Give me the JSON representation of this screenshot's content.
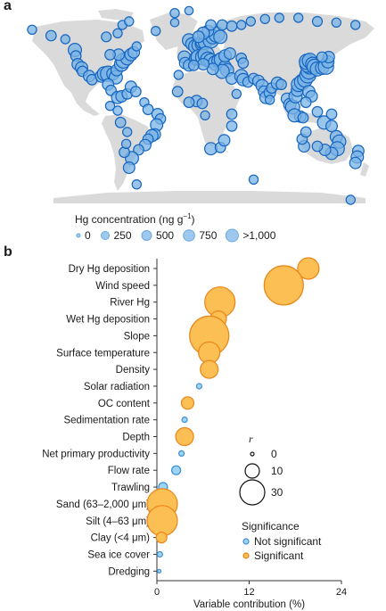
{
  "panel_a": {
    "label": "a"
  },
  "panel_b": {
    "label": "b"
  },
  "map_legend": {
    "title": "Hg concentration (ng g",
    "title_sup": "−1",
    "title_close": ")",
    "items": [
      {
        "label": "0",
        "value": 0
      },
      {
        "label": "250",
        "value": 250
      },
      {
        "label": "500",
        "value": 500
      },
      {
        "label": "750",
        "value": 750
      },
      {
        "label": ">1,000",
        "value": 1000
      }
    ]
  },
  "colors": {
    "not_significant_fill": "#9fd3f2",
    "not_significant_stroke": "#3b8fd4",
    "significant_fill": "#fbbf53",
    "significant_stroke": "#e8861b",
    "map_land": "#dadada",
    "map_point_fill": "#79b3e6",
    "map_point_stroke": "#1565c0"
  },
  "chart_data": {
    "type": "scatter",
    "xlabel": "Variable contribution (%)",
    "xlim": [
      0,
      24
    ],
    "xticks": [
      0,
      12,
      24
    ],
    "categories": [
      "Dry Hg deposition",
      "Wind speed",
      "River Hg",
      "Wet Hg deposition",
      "Slope",
      "Surface temperature",
      "Density",
      "Solar radiation",
      "OC content",
      "Sedimentation rate",
      "Depth",
      "Net primary productivity",
      "Flow rate",
      "Trawling",
      "Sand (63–2,000 μm)",
      "Silt (4–63 μm)",
      "Clay (<4 μm)",
      "Sea ice cover",
      "Dredging"
    ],
    "points": [
      {
        "x": 19.7,
        "r": 12,
        "significant": true
      },
      {
        "x": 16.5,
        "r": 22,
        "significant": true
      },
      {
        "x": 8.2,
        "r": 17,
        "significant": true
      },
      {
        "x": 8.0,
        "r": 9,
        "significant": true
      },
      {
        "x": 6.8,
        "r": 22,
        "significant": true
      },
      {
        "x": 6.8,
        "r": 12,
        "significant": true
      },
      {
        "x": 6.8,
        "r": 10,
        "significant": true
      },
      {
        "x": 5.5,
        "r": 3,
        "significant": false
      },
      {
        "x": 4.0,
        "r": 7,
        "significant": true
      },
      {
        "x": 3.6,
        "r": 3,
        "significant": false
      },
      {
        "x": 3.6,
        "r": 10,
        "significant": true
      },
      {
        "x": 3.2,
        "r": 3,
        "significant": false
      },
      {
        "x": 2.5,
        "r": 5,
        "significant": false
      },
      {
        "x": 0.8,
        "r": 5,
        "significant": false
      },
      {
        "x": 0.7,
        "r": 17,
        "significant": true
      },
      {
        "x": 0.7,
        "r": 17,
        "significant": true
      },
      {
        "x": 0.6,
        "r": 6,
        "significant": true
      },
      {
        "x": 0.4,
        "r": 3,
        "significant": false
      },
      {
        "x": 0.3,
        "r": 2,
        "significant": false
      }
    ],
    "size_legend": {
      "title": "r",
      "items": [
        {
          "label": "0",
          "r": 0
        },
        {
          "label": "10",
          "r": 10
        },
        {
          "label": "30",
          "r": 30
        }
      ]
    },
    "color_legend": {
      "title": "Significance",
      "items": [
        {
          "label": "Not significant",
          "significant": false
        },
        {
          "label": "Significant",
          "significant": true
        }
      ]
    }
  },
  "map_points": [
    {
      "lon": -150,
      "lat": 61,
      "v": 300
    },
    {
      "lon": -135,
      "lat": 58,
      "v": 200
    },
    {
      "lon": -125,
      "lat": 49,
      "v": 600
    },
    {
      "lon": -124,
      "lat": 44,
      "v": 300
    },
    {
      "lon": -122,
      "lat": 37,
      "v": 400
    },
    {
      "lon": -118,
      "lat": 34,
      "v": 500
    },
    {
      "lon": -117,
      "lat": 31,
      "v": 300
    },
    {
      "lon": -110,
      "lat": 27,
      "v": 400
    },
    {
      "lon": -107,
      "lat": 24,
      "v": 300
    },
    {
      "lon": -97,
      "lat": 27,
      "v": 500
    },
    {
      "lon": -94,
      "lat": 29,
      "v": 700
    },
    {
      "lon": -90,
      "lat": 29,
      "v": 900
    },
    {
      "lon": -85,
      "lat": 29,
      "v": 500
    },
    {
      "lon": -82,
      "lat": 26,
      "v": 600
    },
    {
      "lon": -81,
      "lat": 32,
      "v": 400
    },
    {
      "lon": -76,
      "lat": 37,
      "v": 700
    },
    {
      "lon": -74,
      "lat": 40,
      "v": 800
    },
    {
      "lon": -70,
      "lat": 42,
      "v": 600
    },
    {
      "lon": -66,
      "lat": 45,
      "v": 500
    },
    {
      "lon": -63,
      "lat": 47,
      "v": 400
    },
    {
      "lon": -60,
      "lat": 52,
      "v": 200
    },
    {
      "lon": -79,
      "lat": 45,
      "v": 400
    },
    {
      "lon": -88,
      "lat": 45,
      "v": 300
    },
    {
      "lon": -92,
      "lat": 60,
      "v": 250
    },
    {
      "lon": -80,
      "lat": 63,
      "v": 200
    },
    {
      "lon": -75,
      "lat": 70,
      "v": 200
    },
    {
      "lon": -68,
      "lat": 73,
      "v": 200
    },
    {
      "lon": -40,
      "lat": 65,
      "v": 200
    },
    {
      "lon": -20,
      "lat": 72,
      "v": 150
    },
    {
      "lon": -20,
      "lat": 80,
      "v": 200
    },
    {
      "lon": -5,
      "lat": 82,
      "v": 150
    },
    {
      "lon": -90,
      "lat": 20,
      "v": 400
    },
    {
      "lon": -87,
      "lat": 15,
      "v": 300
    },
    {
      "lon": -80,
      "lat": 9,
      "v": 500
    },
    {
      "lon": -76,
      "lat": 10,
      "v": 400
    },
    {
      "lon": -70,
      "lat": 12,
      "v": 300
    },
    {
      "lon": -66,
      "lat": 18,
      "v": 400
    },
    {
      "lon": -61,
      "lat": 14,
      "v": 300
    },
    {
      "lon": -52,
      "lat": 5,
      "v": 200
    },
    {
      "lon": -48,
      "lat": -1,
      "v": 300
    },
    {
      "lon": -38,
      "lat": -5,
      "v": 400
    },
    {
      "lon": -35,
      "lat": -9,
      "v": 300
    },
    {
      "lon": -39,
      "lat": -14,
      "v": 500
    },
    {
      "lon": -41,
      "lat": -22,
      "v": 400
    },
    {
      "lon": -44,
      "lat": -23,
      "v": 500
    },
    {
      "lon": -48,
      "lat": -26,
      "v": 300
    },
    {
      "lon": -51,
      "lat": -31,
      "v": 400
    },
    {
      "lon": -58,
      "lat": -35,
      "v": 300
    },
    {
      "lon": -65,
      "lat": -42,
      "v": 600
    },
    {
      "lon": -68,
      "lat": -50,
      "v": 400
    },
    {
      "lon": -73,
      "lat": -37,
      "v": 300
    },
    {
      "lon": -71,
      "lat": -30,
      "v": 200
    },
    {
      "lon": -70,
      "lat": -20,
      "v": 200
    },
    {
      "lon": -77,
      "lat": -12,
      "v": 300
    },
    {
      "lon": -80,
      "lat": -2,
      "v": 200
    },
    {
      "lon": -88,
      "lat": 2,
      "v": 200
    },
    {
      "lon": -5,
      "lat": 57,
      "v": 600
    },
    {
      "lon": -2,
      "lat": 54,
      "v": 500
    },
    {
      "lon": 2,
      "lat": 52,
      "v": 700
    },
    {
      "lon": 5,
      "lat": 53,
      "v": 600
    },
    {
      "lon": 8,
      "lat": 54,
      "v": 500
    },
    {
      "lon": 10,
      "lat": 56,
      "v": 800
    },
    {
      "lon": 12,
      "lat": 55,
      "v": 600
    },
    {
      "lon": 18,
      "lat": 57,
      "v": 900
    },
    {
      "lon": 20,
      "lat": 60,
      "v": 700
    },
    {
      "lon": 24,
      "lat": 62,
      "v": 900
    },
    {
      "lon": 28,
      "lat": 60,
      "v": 600
    },
    {
      "lon": 15,
      "lat": 65,
      "v": 400
    },
    {
      "lon": 10,
      "lat": 63,
      "v": 500
    },
    {
      "lon": 5,
      "lat": 60,
      "v": 400
    },
    {
      "lon": 18,
      "lat": 70,
      "v": 300
    },
    {
      "lon": 30,
      "lat": 70,
      "v": 300
    },
    {
      "lon": 40,
      "lat": 69,
      "v": 300
    },
    {
      "lon": 50,
      "lat": 70,
      "v": 200
    },
    {
      "lon": 60,
      "lat": 73,
      "v": 200
    },
    {
      "lon": 75,
      "lat": 75,
      "v": 200
    },
    {
      "lon": 90,
      "lat": 76,
      "v": 200
    },
    {
      "lon": 110,
      "lat": 76,
      "v": 200
    },
    {
      "lon": 130,
      "lat": 73,
      "v": 250
    },
    {
      "lon": 150,
      "lat": 72,
      "v": 200
    },
    {
      "lon": 170,
      "lat": 70,
      "v": 200
    },
    {
      "lon": -170,
      "lat": 66,
      "v": 200
    },
    {
      "lon": -10,
      "lat": 43,
      "v": 500
    },
    {
      "lon": -9,
      "lat": 38,
      "v": 400
    },
    {
      "lon": -5,
      "lat": 36,
      "v": 400
    },
    {
      "lon": 3,
      "lat": 42,
      "v": 700
    },
    {
      "lon": 5,
      "lat": 43,
      "v": 800
    },
    {
      "lon": 10,
      "lat": 43,
      "v": 900
    },
    {
      "lon": 13,
      "lat": 45,
      "v": 1000
    },
    {
      "lon": 15,
      "lat": 41,
      "v": 800
    },
    {
      "lon": 18,
      "lat": 40,
      "v": 700
    },
    {
      "lon": 23,
      "lat": 38,
      "v": 800
    },
    {
      "lon": 26,
      "lat": 40,
      "v": 600
    },
    {
      "lon": 29,
      "lat": 41,
      "v": 700
    },
    {
      "lon": 33,
      "lat": 35,
      "v": 500
    },
    {
      "lon": 35,
      "lat": 32,
      "v": 600
    },
    {
      "lon": 30,
      "lat": 31,
      "v": 700
    },
    {
      "lon": 20,
      "lat": 33,
      "v": 400
    },
    {
      "lon": 10,
      "lat": 37,
      "v": 400
    },
    {
      "lon": 0,
      "lat": 36,
      "v": 300
    },
    {
      "lon": 33,
      "lat": 44,
      "v": 500
    },
    {
      "lon": 38,
      "lat": 46,
      "v": 400
    },
    {
      "lon": 50,
      "lat": 42,
      "v": 300
    },
    {
      "lon": 52,
      "lat": 38,
      "v": 300
    },
    {
      "lon": 40,
      "lat": 25,
      "v": 400
    },
    {
      "lon": 50,
      "lat": 27,
      "v": 600
    },
    {
      "lon": 52,
      "lat": 24,
      "v": 500
    },
    {
      "lon": 57,
      "lat": 22,
      "v": 300
    },
    {
      "lon": 63,
      "lat": 25,
      "v": 300
    },
    {
      "lon": 68,
      "lat": 23,
      "v": 400
    },
    {
      "lon": 72,
      "lat": 19,
      "v": 500
    },
    {
      "lon": 74,
      "lat": 14,
      "v": 400
    },
    {
      "lon": 76,
      "lat": 9,
      "v": 500
    },
    {
      "lon": 80,
      "lat": 13,
      "v": 400
    },
    {
      "lon": 82,
      "lat": 17,
      "v": 300
    },
    {
      "lon": 88,
      "lat": 21,
      "v": 500
    },
    {
      "lon": 92,
      "lat": 20,
      "v": 300
    },
    {
      "lon": 80,
      "lat": 7,
      "v": 200
    },
    {
      "lon": 98,
      "lat": 8,
      "v": 400
    },
    {
      "lon": 101,
      "lat": 3,
      "v": 500
    },
    {
      "lon": 104,
      "lat": 1,
      "v": 700
    },
    {
      "lon": 107,
      "lat": 10,
      "v": 600
    },
    {
      "lon": 109,
      "lat": 15,
      "v": 500
    },
    {
      "lon": 110,
      "lat": 20,
      "v": 700
    },
    {
      "lon": 114,
      "lat": 22,
      "v": 900
    },
    {
      "lon": 117,
      "lat": 24,
      "v": 800
    },
    {
      "lon": 120,
      "lat": 28,
      "v": 1000
    },
    {
      "lon": 121,
      "lat": 31,
      "v": 900
    },
    {
      "lon": 122,
      "lat": 35,
      "v": 800
    },
    {
      "lon": 120,
      "lat": 37,
      "v": 1000
    },
    {
      "lon": 119,
      "lat": 39,
      "v": 900
    },
    {
      "lon": 122,
      "lat": 40,
      "v": 800
    },
    {
      "lon": 125,
      "lat": 37,
      "v": 700
    },
    {
      "lon": 127,
      "lat": 35,
      "v": 800
    },
    {
      "lon": 130,
      "lat": 33,
      "v": 700
    },
    {
      "lon": 135,
      "lat": 34,
      "v": 600
    },
    {
      "lon": 139,
      "lat": 35,
      "v": 900
    },
    {
      "lon": 141,
      "lat": 39,
      "v": 500
    },
    {
      "lon": 142,
      "lat": 43,
      "v": 400
    },
    {
      "lon": 135,
      "lat": 43,
      "v": 300
    },
    {
      "lon": 121,
      "lat": 14,
      "v": 500
    },
    {
      "lon": 124,
      "lat": 10,
      "v": 400
    },
    {
      "lon": 118,
      "lat": 5,
      "v": 300
    },
    {
      "lon": 112,
      "lat": -7,
      "v": 400
    },
    {
      "lon": 106,
      "lat": -6,
      "v": 600
    },
    {
      "lon": 115,
      "lat": -8,
      "v": 300
    },
    {
      "lon": 130,
      "lat": -3,
      "v": 300
    },
    {
      "lon": 137,
      "lat": -12,
      "v": 600
    },
    {
      "lon": 145,
      "lat": -5,
      "v": 300
    },
    {
      "lon": 145,
      "lat": -15,
      "v": 400
    },
    {
      "lon": 150,
      "lat": -24,
      "v": 500
    },
    {
      "lon": 153,
      "lat": -28,
      "v": 600
    },
    {
      "lon": 151,
      "lat": -34,
      "v": 700
    },
    {
      "lon": 145,
      "lat": -38,
      "v": 500
    },
    {
      "lon": 138,
      "lat": -35,
      "v": 400
    },
    {
      "lon": 130,
      "lat": -32,
      "v": 300
    },
    {
      "lon": 116,
      "lat": -32,
      "v": 400
    },
    {
      "lon": 114,
      "lat": -26,
      "v": 300
    },
    {
      "lon": 118,
      "lat": -20,
      "v": 300
    },
    {
      "lon": 173,
      "lat": -36,
      "v": 400
    },
    {
      "lon": 172,
      "lat": -41,
      "v": 500
    },
    {
      "lon": 170,
      "lat": -46,
      "v": 400
    },
    {
      "lon": 18,
      "lat": -34,
      "v": 500
    },
    {
      "lon": 28,
      "lat": -33,
      "v": 300
    },
    {
      "lon": 32,
      "lat": -27,
      "v": 400
    },
    {
      "lon": 40,
      "lat": -15,
      "v": 300
    },
    {
      "lon": 40,
      "lat": -5,
      "v": 300
    },
    {
      "lon": 45,
      "lat": 12,
      "v": 200
    },
    {
      "lon": 3,
      "lat": 6,
      "v": 400
    },
    {
      "lon": -5,
      "lat": 5,
      "v": 300
    },
    {
      "lon": 9,
      "lat": 4,
      "v": 300
    },
    {
      "lon": 12,
      "lat": -6,
      "v": 200
    },
    {
      "lon": -17,
      "lat": 14,
      "v": 300
    },
    {
      "lon": -16,
      "lat": 28,
      "v": 200
    },
    {
      "lon": 63,
      "lat": -60,
      "v": 200
    },
    {
      "lon": -60,
      "lat": -64,
      "v": 200
    },
    {
      "lon": 165,
      "lat": -77,
      "v": 200
    }
  ]
}
